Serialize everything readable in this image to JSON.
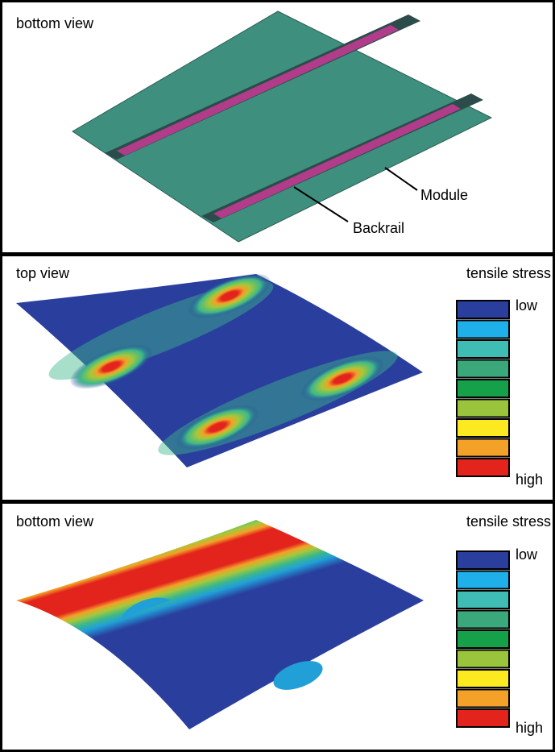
{
  "panels": [
    {
      "label": "bottom view",
      "annotations": [
        "Module",
        "Backrail"
      ]
    },
    {
      "label": "top view",
      "legend_title": "tensile stress",
      "legend_low": "low",
      "legend_high": "high"
    },
    {
      "label": "bottom view",
      "legend_title": "tensile stress",
      "legend_low": "low",
      "legend_high": "high"
    }
  ]
}
